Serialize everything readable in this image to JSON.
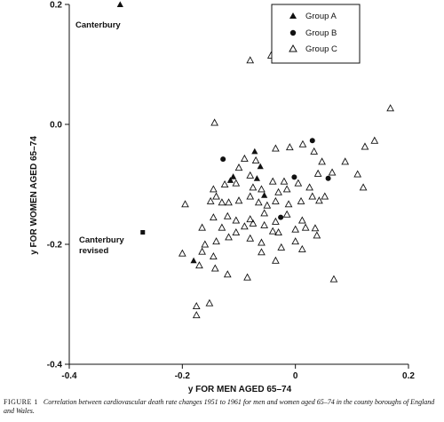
{
  "caption": {
    "label": "FIGURE 1",
    "text": "Correlation between cardiovascular death rate changes 1951 to 1961 for men and women aged 65–74 in the county boroughs of England and Wales."
  },
  "chart_data": {
    "type": "scatter",
    "title": "",
    "xlabel": "y FOR MEN AGED 65–74",
    "ylabel": "y FOR WOMEN AGED 65–74",
    "xlim": [
      -0.4,
      0.2
    ],
    "ylim": [
      -0.4,
      0.2
    ],
    "xticks": [
      "-0.4",
      "-0.2",
      "0",
      "0.2"
    ],
    "yticks": [
      "0.2",
      "0.0",
      "-0.2",
      "-0.4"
    ],
    "xtick_values": [
      -0.4,
      -0.2,
      0,
      0.2
    ],
    "ytick_values": [
      0.2,
      0.0,
      -0.2,
      -0.4
    ],
    "grid": false,
    "legend_position": "top-right",
    "annotations": [
      {
        "text": "Canterbury",
        "x": -0.31,
        "y": 0.2
      },
      {
        "text": "Canterbury",
        "x": -0.27,
        "y": -0.18
      },
      {
        "text": "revised",
        "x": -0.27,
        "y": -0.18
      }
    ],
    "series": [
      {
        "name": "Group A",
        "marker": "triangle-filled",
        "points": [
          [
            -0.31,
            0.2
          ],
          [
            -0.18,
            -0.227
          ],
          [
            -0.115,
            -0.093
          ],
          [
            -0.072,
            -0.045
          ],
          [
            -0.068,
            -0.09
          ],
          [
            -0.055,
            -0.118
          ],
          [
            -0.062,
            -0.07
          ],
          [
            -0.11,
            -0.087
          ]
        ]
      },
      {
        "name": "Group B",
        "marker": "circle-filled",
        "points": [
          [
            0.03,
            -0.027
          ],
          [
            -0.128,
            -0.058
          ],
          [
            -0.002,
            -0.088
          ],
          [
            0.058,
            -0.09
          ],
          [
            -0.026,
            -0.155
          ]
        ]
      },
      {
        "name": "Group C",
        "marker": "triangle-open",
        "points": [
          [
            -0.08,
            0.107
          ],
          [
            -0.043,
            0.115
          ],
          [
            0.168,
            0.027
          ],
          [
            -0.143,
            0.003
          ],
          [
            0.14,
            -0.027
          ],
          [
            0.123,
            -0.037
          ],
          [
            0.088,
            -0.062
          ],
          [
            0.11,
            -0.083
          ],
          [
            0.12,
            -0.105
          ],
          [
            0.013,
            -0.033
          ],
          [
            0.033,
            -0.045
          ],
          [
            0.047,
            -0.062
          ],
          [
            0.04,
            -0.082
          ],
          [
            0.065,
            -0.08
          ],
          [
            0.052,
            -0.12
          ],
          [
            -0.01,
            -0.038
          ],
          [
            -0.035,
            -0.04
          ],
          [
            -0.07,
            -0.06
          ],
          [
            -0.09,
            -0.057
          ],
          [
            -0.1,
            -0.072
          ],
          [
            -0.08,
            -0.085
          ],
          [
            -0.105,
            -0.098
          ],
          [
            -0.125,
            -0.1
          ],
          [
            -0.145,
            -0.108
          ],
          [
            -0.04,
            -0.095
          ],
          [
            -0.02,
            -0.095
          ],
          [
            0.005,
            -0.098
          ],
          [
            0.025,
            -0.105
          ],
          [
            -0.015,
            -0.108
          ],
          [
            0.03,
            -0.12
          ],
          [
            -0.03,
            -0.113
          ],
          [
            -0.06,
            -0.108
          ],
          [
            -0.075,
            -0.105
          ],
          [
            -0.195,
            -0.133
          ],
          [
            -0.15,
            -0.128
          ],
          [
            -0.14,
            -0.12
          ],
          [
            -0.13,
            -0.13
          ],
          [
            -0.118,
            -0.13
          ],
          [
            -0.1,
            -0.127
          ],
          [
            -0.08,
            -0.12
          ],
          [
            -0.065,
            -0.13
          ],
          [
            -0.05,
            -0.135
          ],
          [
            -0.035,
            -0.128
          ],
          [
            -0.012,
            -0.133
          ],
          [
            0.01,
            -0.128
          ],
          [
            0.042,
            -0.127
          ],
          [
            -0.12,
            -0.153
          ],
          [
            -0.145,
            -0.155
          ],
          [
            -0.105,
            -0.16
          ],
          [
            -0.08,
            -0.158
          ],
          [
            -0.055,
            -0.148
          ],
          [
            -0.035,
            -0.162
          ],
          [
            -0.015,
            -0.15
          ],
          [
            0.012,
            -0.16
          ],
          [
            0.035,
            -0.173
          ],
          [
            -0.165,
            -0.172
          ],
          [
            -0.13,
            -0.172
          ],
          [
            -0.105,
            -0.18
          ],
          [
            -0.09,
            -0.17
          ],
          [
            -0.075,
            -0.165
          ],
          [
            -0.055,
            -0.168
          ],
          [
            -0.04,
            -0.178
          ],
          [
            0.0,
            -0.175
          ],
          [
            0.018,
            -0.172
          ],
          [
            0.038,
            -0.185
          ],
          [
            -0.16,
            -0.2
          ],
          [
            -0.14,
            -0.195
          ],
          [
            -0.118,
            -0.188
          ],
          [
            -0.08,
            -0.19
          ],
          [
            -0.06,
            -0.197
          ],
          [
            -0.0,
            -0.195
          ],
          [
            0.012,
            -0.208
          ],
          [
            -0.03,
            -0.18
          ],
          [
            -0.165,
            -0.212
          ],
          [
            -0.145,
            -0.22
          ],
          [
            -0.06,
            -0.213
          ],
          [
            -0.035,
            -0.227
          ],
          [
            -0.142,
            -0.24
          ],
          [
            -0.085,
            -0.255
          ],
          [
            -0.12,
            -0.25
          ],
          [
            0.068,
            -0.258
          ],
          [
            -0.152,
            -0.298
          ],
          [
            -0.175,
            -0.303
          ],
          [
            -0.175,
            -0.318
          ],
          [
            -0.2,
            -0.215
          ],
          [
            -0.17,
            -0.235
          ],
          [
            -0.025,
            -0.205
          ]
        ]
      },
      {
        "name": "",
        "marker": "square-filled",
        "points": [
          [
            -0.27,
            -0.18
          ]
        ]
      }
    ]
  }
}
